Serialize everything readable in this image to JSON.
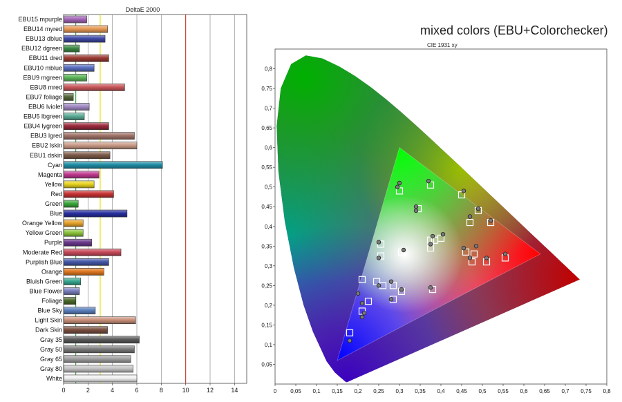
{
  "colors": {
    "ref_line_green": "#2e9b2e",
    "ref_line_yellow": "#e8e000",
    "ref_line_red": "#c0392b",
    "grid": "#909090",
    "frame": "#444444"
  },
  "chart_data": [
    {
      "type": "bar",
      "orientation": "horizontal",
      "title": "DeltaE 2000",
      "xlabel": "",
      "ylabel": "",
      "xlim": [
        0,
        15
      ],
      "x_ticks": [
        0,
        2,
        4,
        6,
        8,
        10,
        12,
        14
      ],
      "grid": true,
      "reference_lines": [
        {
          "value": 1,
          "color": "#2e9b2e"
        },
        {
          "value": 3,
          "color": "#e8e000"
        },
        {
          "value": 10,
          "color": "#c0392b"
        }
      ],
      "categories": [
        "EBU15 mpurple",
        "EBU14 myred",
        "EBU13 dblue",
        "EBU12 dgreen",
        "EBU11 dred",
        "EBU10 mblue",
        "EBU9 mgreen",
        "EBU8 mred",
        "EBU7 foliage",
        "EBU6 lviolet",
        "EBU5 lbgreen",
        "EBU4 lygreen",
        "EBU3 lgred",
        "EBU2 lskin",
        "EBU1 dskin",
        "Cyan",
        "Magenta",
        "Yellow",
        "Red",
        "Green",
        "Blue",
        "Orange Yellow",
        "Yellow Green",
        "Purple",
        "Moderate Red",
        "Purplish Blue",
        "Orange",
        "Bluish Green",
        "Blue Flower",
        "Foliage",
        "Blue Sky",
        "Light Skin",
        "Dark Skin",
        "Gray 35",
        "Gray 50",
        "Gray 65",
        "Gray 80",
        "White"
      ],
      "values": [
        1.9,
        3.6,
        3.4,
        1.3,
        3.7,
        2.5,
        1.9,
        5.0,
        0.8,
        2.1,
        1.7,
        3.7,
        5.8,
        6.0,
        3.8,
        8.1,
        2.9,
        2.5,
        4.1,
        1.2,
        5.2,
        1.6,
        1.6,
        2.3,
        4.7,
        3.7,
        3.3,
        1.4,
        1.3,
        1.0,
        2.6,
        5.9,
        3.6,
        6.2,
        5.8,
        5.5,
        5.7,
        6.0
      ],
      "bar_colors": [
        "#a566b8",
        "#e89a55",
        "#3f4aa6",
        "#3b8a43",
        "#9a3c33",
        "#5a6fc2",
        "#5fb85a",
        "#c8565a",
        "#56673a",
        "#a38ac6",
        "#59ab96",
        "#9b2a3d",
        "#a07468",
        "#c99a86",
        "#7c5a49",
        "#1f8ea6",
        "#c0388f",
        "#e8d51f",
        "#c83232",
        "#3aa83a",
        "#2830a0",
        "#e8a42a",
        "#8cc43c",
        "#6b3a8c",
        "#c84a5a",
        "#4458a8",
        "#e07820",
        "#38a890",
        "#7a80c0",
        "#4a6a2a",
        "#5a80bc",
        "#c8907a",
        "#7a5040",
        "#5a5a5a",
        "#7a7a7a",
        "#a0a0a0",
        "#c4c4c4",
        "#f0f0f0"
      ]
    },
    {
      "type": "scatter",
      "title": "mixed colors (EBU+Colorchecker)",
      "subtitle": "CIE 1931 xy",
      "xlabel": "",
      "ylabel": "",
      "xlim": [
        0,
        0.8
      ],
      "ylim": [
        0,
        0.85
      ],
      "x_ticks": [
        0,
        0.05,
        0.1,
        0.15,
        0.2,
        0.25,
        0.3,
        0.35,
        0.4,
        0.45,
        0.5,
        0.55,
        0.6,
        0.65,
        0.7,
        0.75,
        0.8
      ],
      "y_ticks": [
        0.05,
        0.1,
        0.15,
        0.2,
        0.25,
        0.3,
        0.35,
        0.4,
        0.45,
        0.5,
        0.55,
        0.6,
        0.65,
        0.7,
        0.75,
        0.8
      ],
      "x_tick_labels": [
        "0",
        "0,05",
        "0,1",
        "0,15",
        "0,2",
        "0,25",
        "0,3",
        "0,35",
        "0,4",
        "0,45",
        "0,5",
        "0,55",
        "0,6",
        "0,65",
        "0,7",
        "0,75",
        "0,8"
      ],
      "y_tick_labels": [
        "0,05",
        "0,1",
        "0,15",
        "0,2",
        "0,25",
        "0,3",
        "0,35",
        "0,4",
        "0,45",
        "0,5",
        "0,55",
        "0,6",
        "0,65",
        "0,7",
        "0,75",
        "0,8"
      ],
      "gamut_triangle": [
        [
          0.64,
          0.33
        ],
        [
          0.3,
          0.6
        ],
        [
          0.15,
          0.06
        ]
      ],
      "series": [
        {
          "marker": "square",
          "points": [
            [
              0.3,
              0.49
            ],
            [
              0.375,
              0.505
            ],
            [
              0.305,
              0.335
            ],
            [
              0.255,
              0.355
            ],
            [
              0.255,
              0.325
            ],
            [
              0.245,
              0.26
            ],
            [
              0.285,
              0.25
            ],
            [
              0.26,
              0.25
            ],
            [
              0.285,
              0.215
            ],
            [
              0.305,
              0.235
            ],
            [
              0.21,
              0.265
            ],
            [
              0.225,
              0.21
            ],
            [
              0.21,
              0.185
            ],
            [
              0.18,
              0.13
            ],
            [
              0.375,
              0.345
            ],
            [
              0.38,
              0.24
            ],
            [
              0.45,
              0.48
            ],
            [
              0.49,
              0.44
            ],
            [
              0.47,
              0.41
            ],
            [
              0.52,
              0.41
            ],
            [
              0.345,
              0.445
            ],
            [
              0.4,
              0.37
            ],
            [
              0.385,
              0.365
            ],
            [
              0.46,
              0.335
            ],
            [
              0.48,
              0.33
            ],
            [
              0.51,
              0.31
            ],
            [
              0.475,
              0.31
            ],
            [
              0.555,
              0.32
            ],
            [
              0.375,
              0.365
            ]
          ]
        },
        {
          "marker": "circle",
          "points": [
            [
              0.295,
              0.5
            ],
            [
              0.3,
              0.51
            ],
            [
              0.37,
              0.515
            ],
            [
              0.31,
              0.34
            ],
            [
              0.25,
              0.36
            ],
            [
              0.25,
              0.32
            ],
            [
              0.25,
              0.25
            ],
            [
              0.28,
              0.26
            ],
            [
              0.28,
              0.215
            ],
            [
              0.305,
              0.24
            ],
            [
              0.2,
              0.23
            ],
            [
              0.21,
              0.205
            ],
            [
              0.21,
              0.17
            ],
            [
              0.18,
              0.11
            ],
            [
              0.375,
              0.355
            ],
            [
              0.375,
              0.245
            ],
            [
              0.455,
              0.49
            ],
            [
              0.49,
              0.445
            ],
            [
              0.47,
              0.425
            ],
            [
              0.52,
              0.415
            ],
            [
              0.34,
              0.45
            ],
            [
              0.34,
              0.44
            ],
            [
              0.405,
              0.38
            ],
            [
              0.38,
              0.375
            ],
            [
              0.455,
              0.345
            ],
            [
              0.485,
              0.35
            ],
            [
              0.51,
              0.32
            ],
            [
              0.47,
              0.32
            ],
            [
              0.555,
              0.33
            ],
            [
              0.215,
              0.18
            ]
          ]
        }
      ]
    }
  ]
}
